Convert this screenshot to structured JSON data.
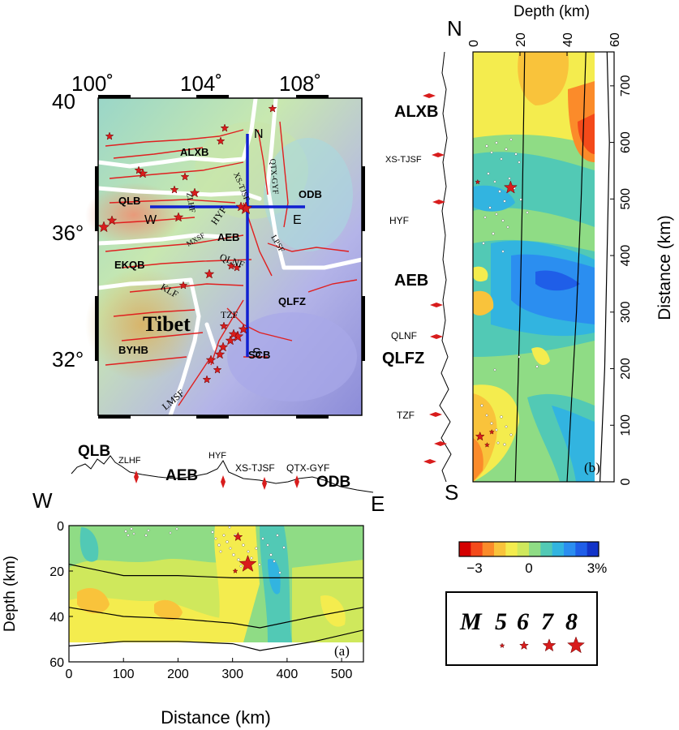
{
  "map": {
    "lat_ticks": [
      "40",
      "36°",
      "32°"
    ],
    "lon_ticks": [
      "100˚",
      "104˚",
      "108˚"
    ],
    "basins": [
      "ALXB",
      "QLB",
      "ODB",
      "AEB",
      "EKQB",
      "QLFZ",
      "BYHB",
      "SCB"
    ],
    "tibet_label": "Tibet",
    "faults": [
      "XS-TJSF",
      "QTX-GYF",
      "ZLHF",
      "HYF",
      "MXSF",
      "LPSF",
      "QLNF",
      "KLF",
      "TZF",
      "LMSF"
    ],
    "profile_ends": {
      "north": "N",
      "south": "S",
      "west": "W",
      "east": "E"
    }
  },
  "section_a": {
    "panel_label": "(a)",
    "west_label": "W",
    "east_label": "E",
    "topo_labels": {
      "qlb": "QLB",
      "zlhf": "ZLHF",
      "aeb": "AEB",
      "hyf": "HYF",
      "xs_tjsf": "XS-TJSF",
      "qtx_gyf": "QTX-GYF",
      "odb": "ODB"
    },
    "chart_data": {
      "type": "heatmap",
      "xlabel": "Distance (km)",
      "ylabel": "Depth (km)",
      "xlim": [
        0,
        540
      ],
      "ylim": [
        0,
        60
      ],
      "x_ticks": [
        "0",
        "100",
        "200",
        "300",
        "400",
        "500"
      ],
      "y_ticks": [
        "0",
        "20",
        "40",
        "60"
      ],
      "earthquakes": [
        {
          "distance": 310,
          "depth": 5,
          "magnitude": 6
        },
        {
          "distance": 328,
          "depth": 17,
          "magnitude": 8
        },
        {
          "distance": 305,
          "depth": 20,
          "magnitude": 5
        }
      ],
      "interfaces": [
        {
          "points": [
            [
              0,
              17
            ],
            [
              100,
              22
            ],
            [
              200,
              22
            ],
            [
              300,
              23
            ],
            [
              400,
              23
            ],
            [
              540,
              23
            ]
          ]
        },
        {
          "points": [
            [
              0,
              36
            ],
            [
              100,
              40
            ],
            [
              200,
              41
            ],
            [
              300,
              43
            ],
            [
              350,
              45
            ],
            [
              450,
              40
            ],
            [
              540,
              36
            ]
          ]
        },
        {
          "points": [
            [
              0,
              53
            ],
            [
              100,
              51
            ],
            [
              200,
              51
            ],
            [
              300,
              52
            ],
            [
              350,
              55
            ],
            [
              450,
              51
            ],
            [
              540,
              46
            ]
          ]
        }
      ]
    }
  },
  "section_b": {
    "panel_label": "(b)",
    "north_label": "N",
    "south_label": "S",
    "profile_labels": {
      "alxb": "ALXB",
      "xs_tjsf": "XS-TJSF",
      "hyf": "HYF",
      "aeb": "AEB",
      "qlnf": "QLNF",
      "qlfz": "QLFZ",
      "tzf": "TZF"
    },
    "chart_data": {
      "type": "heatmap",
      "xlabel": "Depth (km)",
      "ylabel": "Distance (km)",
      "xlim": [
        0,
        60
      ],
      "ylim": [
        0,
        760
      ],
      "x_ticks": [
        "0",
        "20",
        "40",
        "60"
      ],
      "y_ticks": [
        "0",
        "100",
        "200",
        "300",
        "400",
        "500",
        "600",
        "700"
      ],
      "earthquakes": [
        {
          "distance": 530,
          "depth": 2,
          "magnitude": 5
        },
        {
          "distance": 520,
          "depth": 16,
          "magnitude": 7
        },
        {
          "distance": 88,
          "depth": 8,
          "magnitude": 5
        },
        {
          "distance": 80,
          "depth": 3,
          "magnitude": 6
        },
        {
          "distance": 65,
          "depth": 6,
          "magnitude": 5
        }
      ],
      "interfaces": [
        {
          "points": [
            [
              0,
              18
            ],
            [
              300,
              20
            ],
            [
              500,
              21
            ],
            [
              760,
              22
            ]
          ]
        },
        {
          "points": [
            [
              0,
              40
            ],
            [
              300,
              44
            ],
            [
              500,
              46
            ],
            [
              760,
              48
            ]
          ]
        },
        {
          "points": [
            [
              0,
              54
            ],
            [
              200,
              56
            ],
            [
              400,
              57
            ],
            [
              600,
              58
            ],
            [
              760,
              57
            ]
          ]
        }
      ]
    }
  },
  "colorbar": {
    "min_label": "−3",
    "mid_label": "0",
    "max_label": "3%",
    "colors": [
      "#d40000",
      "#f44a1a",
      "#fb8b2a",
      "#f9c33b",
      "#f4ec4e",
      "#cfe85c",
      "#8fdc85",
      "#52c9b5",
      "#32b4e0",
      "#2b8ef0",
      "#1f5ee8",
      "#1233c8"
    ]
  },
  "legend": {
    "magnitudes": [
      "M",
      "5",
      "6",
      "7",
      "8"
    ],
    "star_color": "#d81c1c"
  }
}
